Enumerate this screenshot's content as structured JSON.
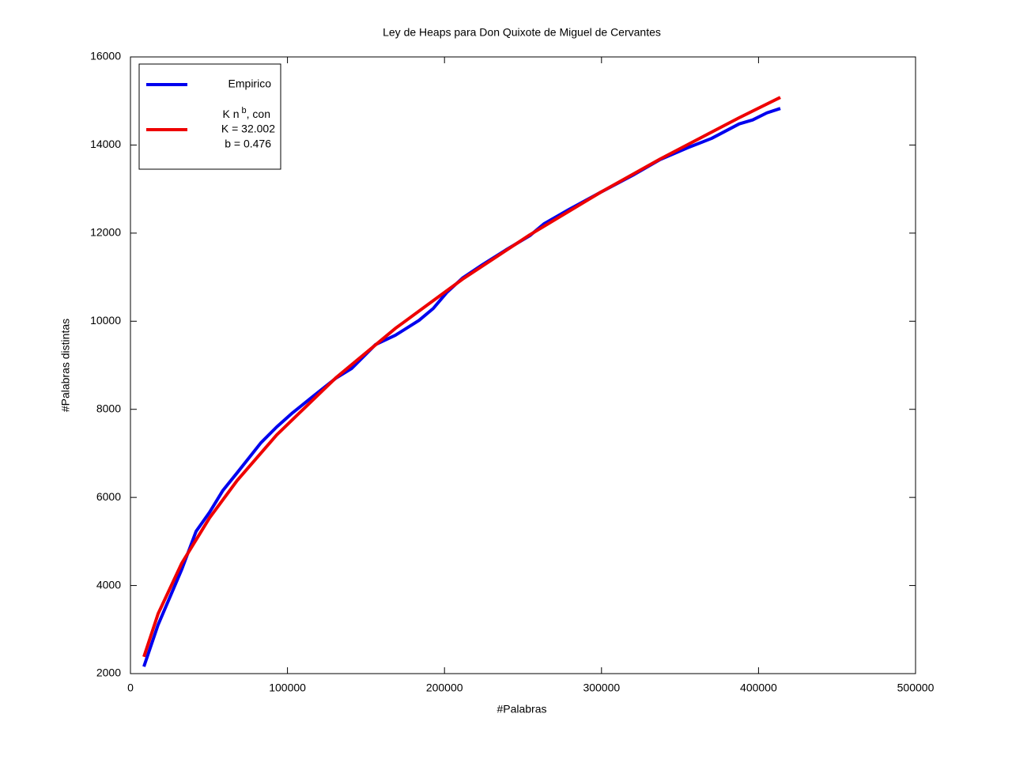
{
  "chart_data": {
    "type": "line",
    "title": "Ley de Heaps para Don Quixote de Miguel de Cervantes",
    "xlabel": "#Palabras",
    "ylabel": "#Palabras distintas",
    "xlim": [
      0,
      500000
    ],
    "xticks": [
      0,
      100000,
      200000,
      300000,
      400000,
      500000
    ],
    "ylim": [
      2000,
      16000
    ],
    "yticks": [
      2000,
      4000,
      6000,
      8000,
      10000,
      12000,
      14000,
      16000
    ],
    "legend": "upper left",
    "series": [
      {
        "name": [
          "Empirico"
        ],
        "color": "#0000ee",
        "x": [
          8560,
          17620,
          25180,
          32730,
          41790,
          50350,
          58910,
          67980,
          83080,
          93150,
          103220,
          115810,
          130920,
          140990,
          156090,
          168680,
          183790,
          192850,
          201410,
          211480,
          224070,
          239180,
          254280,
          263340,
          279460,
          299600,
          319740,
          337360,
          354980,
          370090,
          387710,
          396270,
          405330,
          413890
        ],
        "values": [
          2160,
          3110,
          3740,
          4370,
          5230,
          5660,
          6160,
          6560,
          7240,
          7600,
          7920,
          8280,
          8710,
          8930,
          9470,
          9680,
          10020,
          10290,
          10650,
          10980,
          11280,
          11620,
          11940,
          12210,
          12540,
          12930,
          13310,
          13670,
          13940,
          14150,
          14480,
          14570,
          14730,
          14830
        ]
      },
      {
        "name": [
          "K n",
          "b",
          ", con",
          "K = 32.002",
          "b = 0.476"
        ],
        "color": "#ee0000",
        "x": [
          8560,
          17620,
          32730,
          50350,
          67980,
          93150,
          130920,
          168680,
          211480,
          254280,
          299600,
          337360,
          387710,
          413890
        ],
        "values": [
          2382,
          3360,
          4510,
          5535,
          6385,
          7420,
          8719,
          9836,
          10955,
          11960,
          12931,
          13683,
          14620,
          15082
        ]
      }
    ]
  }
}
